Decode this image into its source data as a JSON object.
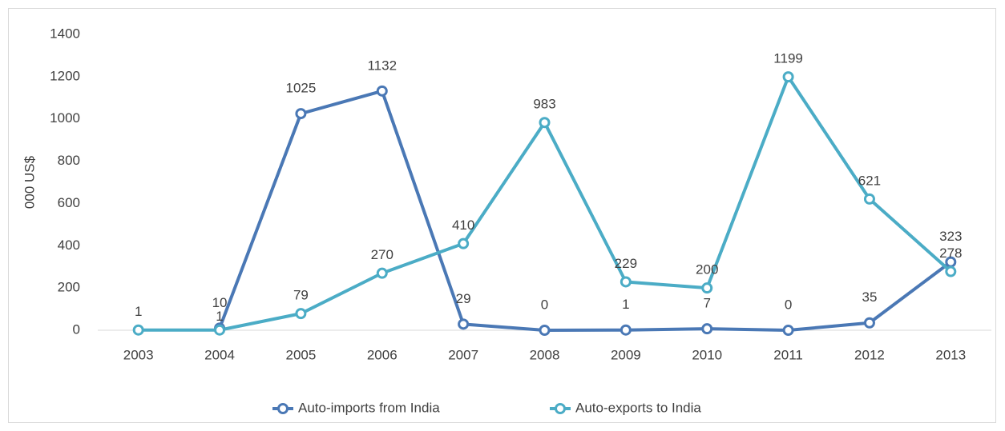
{
  "chart_data": {
    "type": "line",
    "y_label": "000 US$",
    "categories": [
      "2003",
      "2004",
      "2005",
      "2006",
      "2007",
      "2008",
      "2009",
      "2010",
      "2011",
      "2012",
      "2013"
    ],
    "series": [
      {
        "name": "Auto-imports from India",
        "color": "#4a78b5",
        "values": [
          null,
          10,
          1025,
          1132,
          29,
          0,
          1,
          7,
          0,
          35,
          323
        ]
      },
      {
        "name": "Auto-exports to India",
        "color": "#4bacc6",
        "values": [
          1,
          1,
          79,
          270,
          410,
          983,
          229,
          200,
          1199,
          621,
          278
        ]
      }
    ],
    "ylim": [
      0,
      1400
    ],
    "yticks": [
      0,
      200,
      400,
      600,
      800,
      1000,
      1200,
      1400
    ],
    "grid": false,
    "legend": "bottom"
  }
}
